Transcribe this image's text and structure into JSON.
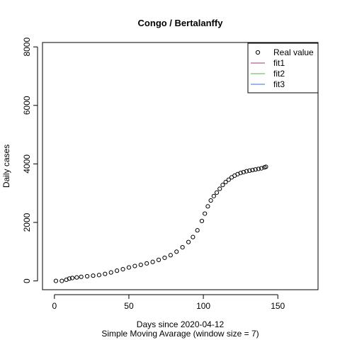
{
  "chart_data": {
    "type": "scatter",
    "title": "Congo / Bertalanffy",
    "xlabel": "Days since 2020-04-12",
    "xsublabel": "Simple Moving Avarage (window size = 7)",
    "ylabel": "Daily cases",
    "xlim": [
      -8,
      177
    ],
    "ylim": [
      -300,
      8150
    ],
    "x_ticks": [
      0,
      50,
      100,
      150
    ],
    "y_ticks": [
      0,
      2000,
      4000,
      6000,
      8000
    ],
    "grid": false,
    "legend_position": "top-right",
    "legend": [
      {
        "label": "Real value",
        "kind": "point",
        "color": "#000000"
      },
      {
        "label": "fit1",
        "kind": "line",
        "color": "#a0307a"
      },
      {
        "label": "fit2",
        "kind": "line",
        "color": "#4ab04a"
      },
      {
        "label": "fit3",
        "kind": "line",
        "color": "#3a6fd0"
      }
    ],
    "series": [
      {
        "name": "Real value",
        "points": [
          [
            1,
            0
          ],
          [
            5,
            0
          ],
          [
            8,
            40
          ],
          [
            10,
            80
          ],
          [
            12,
            100
          ],
          [
            15,
            120
          ],
          [
            18,
            140
          ],
          [
            22,
            160
          ],
          [
            26,
            180
          ],
          [
            30,
            200
          ],
          [
            34,
            240
          ],
          [
            38,
            290
          ],
          [
            42,
            350
          ],
          [
            46,
            400
          ],
          [
            50,
            460
          ],
          [
            54,
            510
          ],
          [
            58,
            550
          ],
          [
            62,
            600
          ],
          [
            66,
            650
          ],
          [
            70,
            720
          ],
          [
            74,
            790
          ],
          [
            78,
            880
          ],
          [
            82,
            1000
          ],
          [
            86,
            1150
          ],
          [
            90,
            1330
          ],
          [
            93,
            1500
          ],
          [
            96,
            1730
          ],
          [
            99,
            2050
          ],
          [
            101,
            2300
          ],
          [
            103,
            2550
          ],
          [
            105,
            2750
          ],
          [
            107,
            2900
          ],
          [
            109,
            3020
          ],
          [
            111,
            3150
          ],
          [
            113,
            3280
          ],
          [
            115,
            3380
          ],
          [
            117,
            3460
          ],
          [
            119,
            3540
          ],
          [
            121,
            3600
          ],
          [
            123,
            3650
          ],
          [
            125,
            3690
          ],
          [
            127,
            3720
          ],
          [
            129,
            3750
          ],
          [
            131,
            3770
          ],
          [
            133,
            3790
          ],
          [
            135,
            3810
          ],
          [
            137,
            3830
          ],
          [
            139,
            3850
          ],
          [
            141,
            3880
          ],
          [
            142,
            3900
          ]
        ]
      }
    ]
  }
}
